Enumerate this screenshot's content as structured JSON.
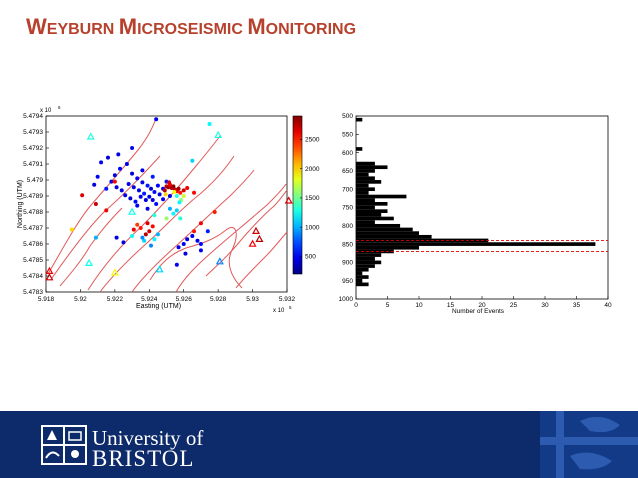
{
  "slide": {
    "title_parts": [
      {
        "cap": "W",
        "rest": "EYBURN "
      },
      {
        "cap": "M",
        "rest": "ICROSEISMIC "
      },
      {
        "cap": "M",
        "rest": "ONITORING"
      }
    ]
  },
  "colors": {
    "title": "#b7412c",
    "footer_bg": "#0d2a6b",
    "fault_line": "#e05a5a",
    "histogram_bar": "#000000",
    "reference_line": "#e00000"
  },
  "footer": {
    "line1": "University of",
    "line2": "BRISTOL"
  },
  "chart_data": [
    {
      "type": "scatter",
      "xlabel": "Easting (UTM)",
      "ylabel": "Northing (UTM)",
      "x_exponent_label": "x 10",
      "x_exponent_power": "5",
      "y_exponent_label": "x 10",
      "y_exponent_power": "6",
      "xlim": [
        591800,
        593200
      ],
      "ylim": [
        5478300,
        5479400
      ],
      "x_ticks": [
        {
          "value": 591800,
          "label": "5.918"
        },
        {
          "value": 592000,
          "label": "5.92"
        },
        {
          "value": 592200,
          "label": "5.922"
        },
        {
          "value": 592400,
          "label": "5.924"
        },
        {
          "value": 592600,
          "label": "5.926"
        },
        {
          "value": 592800,
          "label": "5.928"
        },
        {
          "value": 593000,
          "label": "5.93"
        },
        {
          "value": 593200,
          "label": "5.932"
        }
      ],
      "y_ticks": [
        {
          "value": 5478300,
          "label": "5.4783"
        },
        {
          "value": 5478400,
          "label": "5.4784"
        },
        {
          "value": 5478500,
          "label": "5.4785"
        },
        {
          "value": 5478600,
          "label": "5.4786"
        },
        {
          "value": 5478700,
          "label": "5.4787"
        },
        {
          "value": 5478800,
          "label": "5.4788"
        },
        {
          "value": 5478900,
          "label": "5.4789"
        },
        {
          "value": 5479000,
          "label": "5.479"
        },
        {
          "value": 5479100,
          "label": "5.4791"
        },
        {
          "value": 5479200,
          "label": "5.4792"
        },
        {
          "value": 5479300,
          "label": "5.4793"
        },
        {
          "value": 5479400,
          "label": "5.4794"
        }
      ],
      "colorbar": {
        "range": [
          200,
          2900
        ],
        "ticks": [
          {
            "value": 500,
            "label": "500"
          },
          {
            "value": 1000,
            "label": "1000"
          },
          {
            "value": 1500,
            "label": "1500"
          },
          {
            "value": 2000,
            "label": "2000"
          },
          {
            "value": 2500,
            "label": "2500"
          }
        ]
      },
      "events": [
        {
          "x": 592300,
          "y": 5479040,
          "c": 450
        },
        {
          "x": 592330,
          "y": 5479010,
          "c": 520
        },
        {
          "x": 592360,
          "y": 5478985,
          "c": 480
        },
        {
          "x": 592390,
          "y": 5478965,
          "c": 600
        },
        {
          "x": 592410,
          "y": 5478945,
          "c": 430
        },
        {
          "x": 592430,
          "y": 5478925,
          "c": 560
        },
        {
          "x": 592280,
          "y": 5478975,
          "c": 500
        },
        {
          "x": 592310,
          "y": 5478955,
          "c": 470
        },
        {
          "x": 592340,
          "y": 5478935,
          "c": 520
        },
        {
          "x": 592370,
          "y": 5478915,
          "c": 610
        },
        {
          "x": 592400,
          "y": 5478895,
          "c": 480
        },
        {
          "x": 592420,
          "y": 5478875,
          "c": 450
        },
        {
          "x": 592260,
          "y": 5478905,
          "c": 500
        },
        {
          "x": 592290,
          "y": 5478885,
          "c": 430
        },
        {
          "x": 592320,
          "y": 5478865,
          "c": 560
        },
        {
          "x": 592230,
          "y": 5479070,
          "c": 520
        },
        {
          "x": 592200,
          "y": 5479030,
          "c": 470
        },
        {
          "x": 592180,
          "y": 5478990,
          "c": 500
        },
        {
          "x": 592150,
          "y": 5478945,
          "c": 600
        },
        {
          "x": 592210,
          "y": 5478955,
          "c": 450
        },
        {
          "x": 592240,
          "y": 5478935,
          "c": 480
        },
        {
          "x": 592350,
          "y": 5478895,
          "c": 520
        },
        {
          "x": 592380,
          "y": 5478875,
          "c": 460
        },
        {
          "x": 592450,
          "y": 5478965,
          "c": 540
        },
        {
          "x": 592480,
          "y": 5478945,
          "c": 480
        },
        {
          "x": 592500,
          "y": 5478990,
          "c": 600
        },
        {
          "x": 592270,
          "y": 5479100,
          "c": 470
        },
        {
          "x": 592120,
          "y": 5479110,
          "c": 520
        },
        {
          "x": 592160,
          "y": 5479140,
          "c": 450
        },
        {
          "x": 592220,
          "y": 5479160,
          "c": 480
        },
        {
          "x": 592300,
          "y": 5479200,
          "c": 560
        },
        {
          "x": 592360,
          "y": 5479060,
          "c": 500
        },
        {
          "x": 592420,
          "y": 5479020,
          "c": 600
        },
        {
          "x": 592460,
          "y": 5478910,
          "c": 470
        },
        {
          "x": 592330,
          "y": 5478840,
          "c": 520
        },
        {
          "x": 592390,
          "y": 5478820,
          "c": 480
        },
        {
          "x": 592100,
          "y": 5479020,
          "c": 500
        },
        {
          "x": 592080,
          "y": 5478970,
          "c": 450
        },
        {
          "x": 592440,
          "y": 5478850,
          "c": 560
        },
        {
          "x": 592480,
          "y": 5478880,
          "c": 520
        },
        {
          "x": 592520,
          "y": 5478900,
          "c": 480
        },
        {
          "x": 592540,
          "y": 5478950,
          "c": 600
        },
        {
          "x": 592500,
          "y": 5478960,
          "c": 2700
        },
        {
          "x": 592510,
          "y": 5478955,
          "c": 2800
        },
        {
          "x": 592520,
          "y": 5478970,
          "c": 2600
        },
        {
          "x": 592530,
          "y": 5478950,
          "c": 2750
        },
        {
          "x": 592540,
          "y": 5478960,
          "c": 2850
        },
        {
          "x": 592550,
          "y": 5478940,
          "c": 2700
        },
        {
          "x": 592560,
          "y": 5478930,
          "c": 2600
        },
        {
          "x": 592570,
          "y": 5478945,
          "c": 2800
        },
        {
          "x": 592490,
          "y": 5478935,
          "c": 2750
        },
        {
          "x": 592515,
          "y": 5478985,
          "c": 2650
        },
        {
          "x": 592580,
          "y": 5478920,
          "c": 2500
        },
        {
          "x": 592600,
          "y": 5478935,
          "c": 2700
        },
        {
          "x": 592620,
          "y": 5478950,
          "c": 2600
        },
        {
          "x": 592660,
          "y": 5478920,
          "c": 2550
        },
        {
          "x": 592545,
          "y": 5478925,
          "c": 1900
        },
        {
          "x": 592600,
          "y": 5478900,
          "c": 1750
        },
        {
          "x": 592585,
          "y": 5478875,
          "c": 1600
        },
        {
          "x": 592560,
          "y": 5478900,
          "c": 1300
        },
        {
          "x": 592575,
          "y": 5478860,
          "c": 1200
        },
        {
          "x": 592495,
          "y": 5478910,
          "c": 2000
        },
        {
          "x": 592010,
          "y": 5478905,
          "c": 2650
        },
        {
          "x": 592090,
          "y": 5478850,
          "c": 2700
        },
        {
          "x": 592150,
          "y": 5478810,
          "c": 2600
        },
        {
          "x": 592200,
          "y": 5478990,
          "c": 2550
        },
        {
          "x": 592540,
          "y": 5478790,
          "c": 1200
        },
        {
          "x": 592560,
          "y": 5478810,
          "c": 1100
        },
        {
          "x": 592520,
          "y": 5478820,
          "c": 1000
        },
        {
          "x": 592580,
          "y": 5478760,
          "c": 1300
        },
        {
          "x": 592430,
          "y": 5478630,
          "c": 1200
        },
        {
          "x": 592450,
          "y": 5478660,
          "c": 1000
        },
        {
          "x": 592370,
          "y": 5478620,
          "c": 1100
        },
        {
          "x": 592410,
          "y": 5478590,
          "c": 900
        },
        {
          "x": 592300,
          "y": 5478650,
          "c": 1250
        },
        {
          "x": 592350,
          "y": 5478700,
          "c": 2500
        },
        {
          "x": 592400,
          "y": 5478680,
          "c": 2700
        },
        {
          "x": 592330,
          "y": 5478720,
          "c": 2400
        },
        {
          "x": 592380,
          "y": 5478660,
          "c": 2750
        },
        {
          "x": 592310,
          "y": 5478690,
          "c": 2600
        },
        {
          "x": 592420,
          "y": 5478710,
          "c": 2550
        },
        {
          "x": 592390,
          "y": 5478730,
          "c": 2650
        },
        {
          "x": 592360,
          "y": 5478640,
          "c": 900
        },
        {
          "x": 592620,
          "y": 5478630,
          "c": 450
        },
        {
          "x": 592650,
          "y": 5478650,
          "c": 500
        },
        {
          "x": 592680,
          "y": 5478620,
          "c": 470
        },
        {
          "x": 592600,
          "y": 5478600,
          "c": 520
        },
        {
          "x": 592570,
          "y": 5478580,
          "c": 480
        },
        {
          "x": 592700,
          "y": 5478560,
          "c": 500
        },
        {
          "x": 592610,
          "y": 5478540,
          "c": 450
        },
        {
          "x": 592560,
          "y": 5478470,
          "c": 520
        },
        {
          "x": 592250,
          "y": 5478610,
          "c": 480
        },
        {
          "x": 592210,
          "y": 5478640,
          "c": 450
        },
        {
          "x": 592700,
          "y": 5478730,
          "c": 2600
        },
        {
          "x": 592660,
          "y": 5478680,
          "c": 2500
        },
        {
          "x": 592740,
          "y": 5478680,
          "c": 600
        },
        {
          "x": 592700,
          "y": 5478600,
          "c": 550
        },
        {
          "x": 592500,
          "y": 5478760,
          "c": 1600
        },
        {
          "x": 592430,
          "y": 5478780,
          "c": 1300
        },
        {
          "x": 592650,
          "y": 5479120,
          "c": 1100
        },
        {
          "x": 592750,
          "y": 5479350,
          "c": 1200
        },
        {
          "x": 592440,
          "y": 5479380,
          "c": 500
        },
        {
          "x": 591950,
          "y": 5478690,
          "c": 2000
        },
        {
          "x": 592780,
          "y": 5478800,
          "c": 2500
        },
        {
          "x": 592090,
          "y": 5478640,
          "c": 1000
        }
      ],
      "stations": [
        {
          "x": 592060,
          "y": 5479270,
          "c": 1300
        },
        {
          "x": 592800,
          "y": 5479280,
          "c": 1300
        },
        {
          "x": 592300,
          "y": 5478800,
          "c": 1250
        },
        {
          "x": 591820,
          "y": 5478390,
          "c": 2700
        },
        {
          "x": 591820,
          "y": 5478430,
          "c": 2600
        },
        {
          "x": 592050,
          "y": 5478480,
          "c": 1250
        },
        {
          "x": 592200,
          "y": 5478420,
          "c": 1850
        },
        {
          "x": 592460,
          "y": 5478440,
          "c": 1100
        },
        {
          "x": 592810,
          "y": 5478490,
          "c": 900
        },
        {
          "x": 593020,
          "y": 5478680,
          "c": 2700
        },
        {
          "x": 593040,
          "y": 5478630,
          "c": 2750
        },
        {
          "x": 593210,
          "y": 5478870,
          "c": 2650
        },
        {
          "x": 593000,
          "y": 5478600,
          "c": 2600
        }
      ]
    },
    {
      "type": "bar",
      "orientation": "horizontal",
      "xlabel": "Number of Events",
      "ylabel": "",
      "xlim": [
        0,
        40
      ],
      "ylim": [
        500,
        1000
      ],
      "x_ticks": [
        {
          "value": 0,
          "label": "0"
        },
        {
          "value": 5,
          "label": "5"
        },
        {
          "value": 10,
          "label": "10"
        },
        {
          "value": 15,
          "label": "15"
        },
        {
          "value": 20,
          "label": "20"
        },
        {
          "value": 25,
          "label": "25"
        },
        {
          "value": 30,
          "label": "30"
        },
        {
          "value": 35,
          "label": "35"
        },
        {
          "value": 40,
          "label": "40"
        }
      ],
      "y_ticks": [
        {
          "value": 500,
          "label": "500"
        },
        {
          "value": 550,
          "label": "550"
        },
        {
          "value": 600,
          "label": "600"
        },
        {
          "value": 650,
          "label": "650"
        },
        {
          "value": 700,
          "label": "700"
        },
        {
          "value": 750,
          "label": "750"
        },
        {
          "value": 800,
          "label": "800"
        },
        {
          "value": 850,
          "label": "850"
        },
        {
          "value": 900,
          "label": "900"
        },
        {
          "value": 950,
          "label": "950"
        },
        {
          "value": 1000,
          "label": "1000"
        }
      ],
      "bin_width": 10,
      "bins": [
        {
          "depth": 510,
          "count": 1
        },
        {
          "depth": 520,
          "count": 0
        },
        {
          "depth": 530,
          "count": 0
        },
        {
          "depth": 540,
          "count": 0
        },
        {
          "depth": 550,
          "count": 0
        },
        {
          "depth": 560,
          "count": 0
        },
        {
          "depth": 570,
          "count": 0
        },
        {
          "depth": 580,
          "count": 0
        },
        {
          "depth": 590,
          "count": 1
        },
        {
          "depth": 600,
          "count": 0
        },
        {
          "depth": 610,
          "count": 0
        },
        {
          "depth": 620,
          "count": 0
        },
        {
          "depth": 630,
          "count": 3
        },
        {
          "depth": 640,
          "count": 5
        },
        {
          "depth": 650,
          "count": 3
        },
        {
          "depth": 660,
          "count": 2
        },
        {
          "depth": 670,
          "count": 3
        },
        {
          "depth": 680,
          "count": 4
        },
        {
          "depth": 690,
          "count": 2
        },
        {
          "depth": 700,
          "count": 3
        },
        {
          "depth": 710,
          "count": 2
        },
        {
          "depth": 720,
          "count": 8
        },
        {
          "depth": 730,
          "count": 3
        },
        {
          "depth": 740,
          "count": 5
        },
        {
          "depth": 750,
          "count": 3
        },
        {
          "depth": 760,
          "count": 5
        },
        {
          "depth": 770,
          "count": 4
        },
        {
          "depth": 780,
          "count": 6
        },
        {
          "depth": 790,
          "count": 3
        },
        {
          "depth": 800,
          "count": 7
        },
        {
          "depth": 810,
          "count": 9
        },
        {
          "depth": 820,
          "count": 10
        },
        {
          "depth": 830,
          "count": 12
        },
        {
          "depth": 840,
          "count": 21
        },
        {
          "depth": 850,
          "count": 38
        },
        {
          "depth": 860,
          "count": 10
        },
        {
          "depth": 870,
          "count": 6
        },
        {
          "depth": 880,
          "count": 4
        },
        {
          "depth": 890,
          "count": 3
        },
        {
          "depth": 900,
          "count": 4
        },
        {
          "depth": 910,
          "count": 3
        },
        {
          "depth": 920,
          "count": 2
        },
        {
          "depth": 930,
          "count": 1
        },
        {
          "depth": 940,
          "count": 2
        },
        {
          "depth": 950,
          "count": 1
        },
        {
          "depth": 960,
          "count": 2
        }
      ],
      "reference_lines": [
        840,
        870
      ]
    }
  ]
}
